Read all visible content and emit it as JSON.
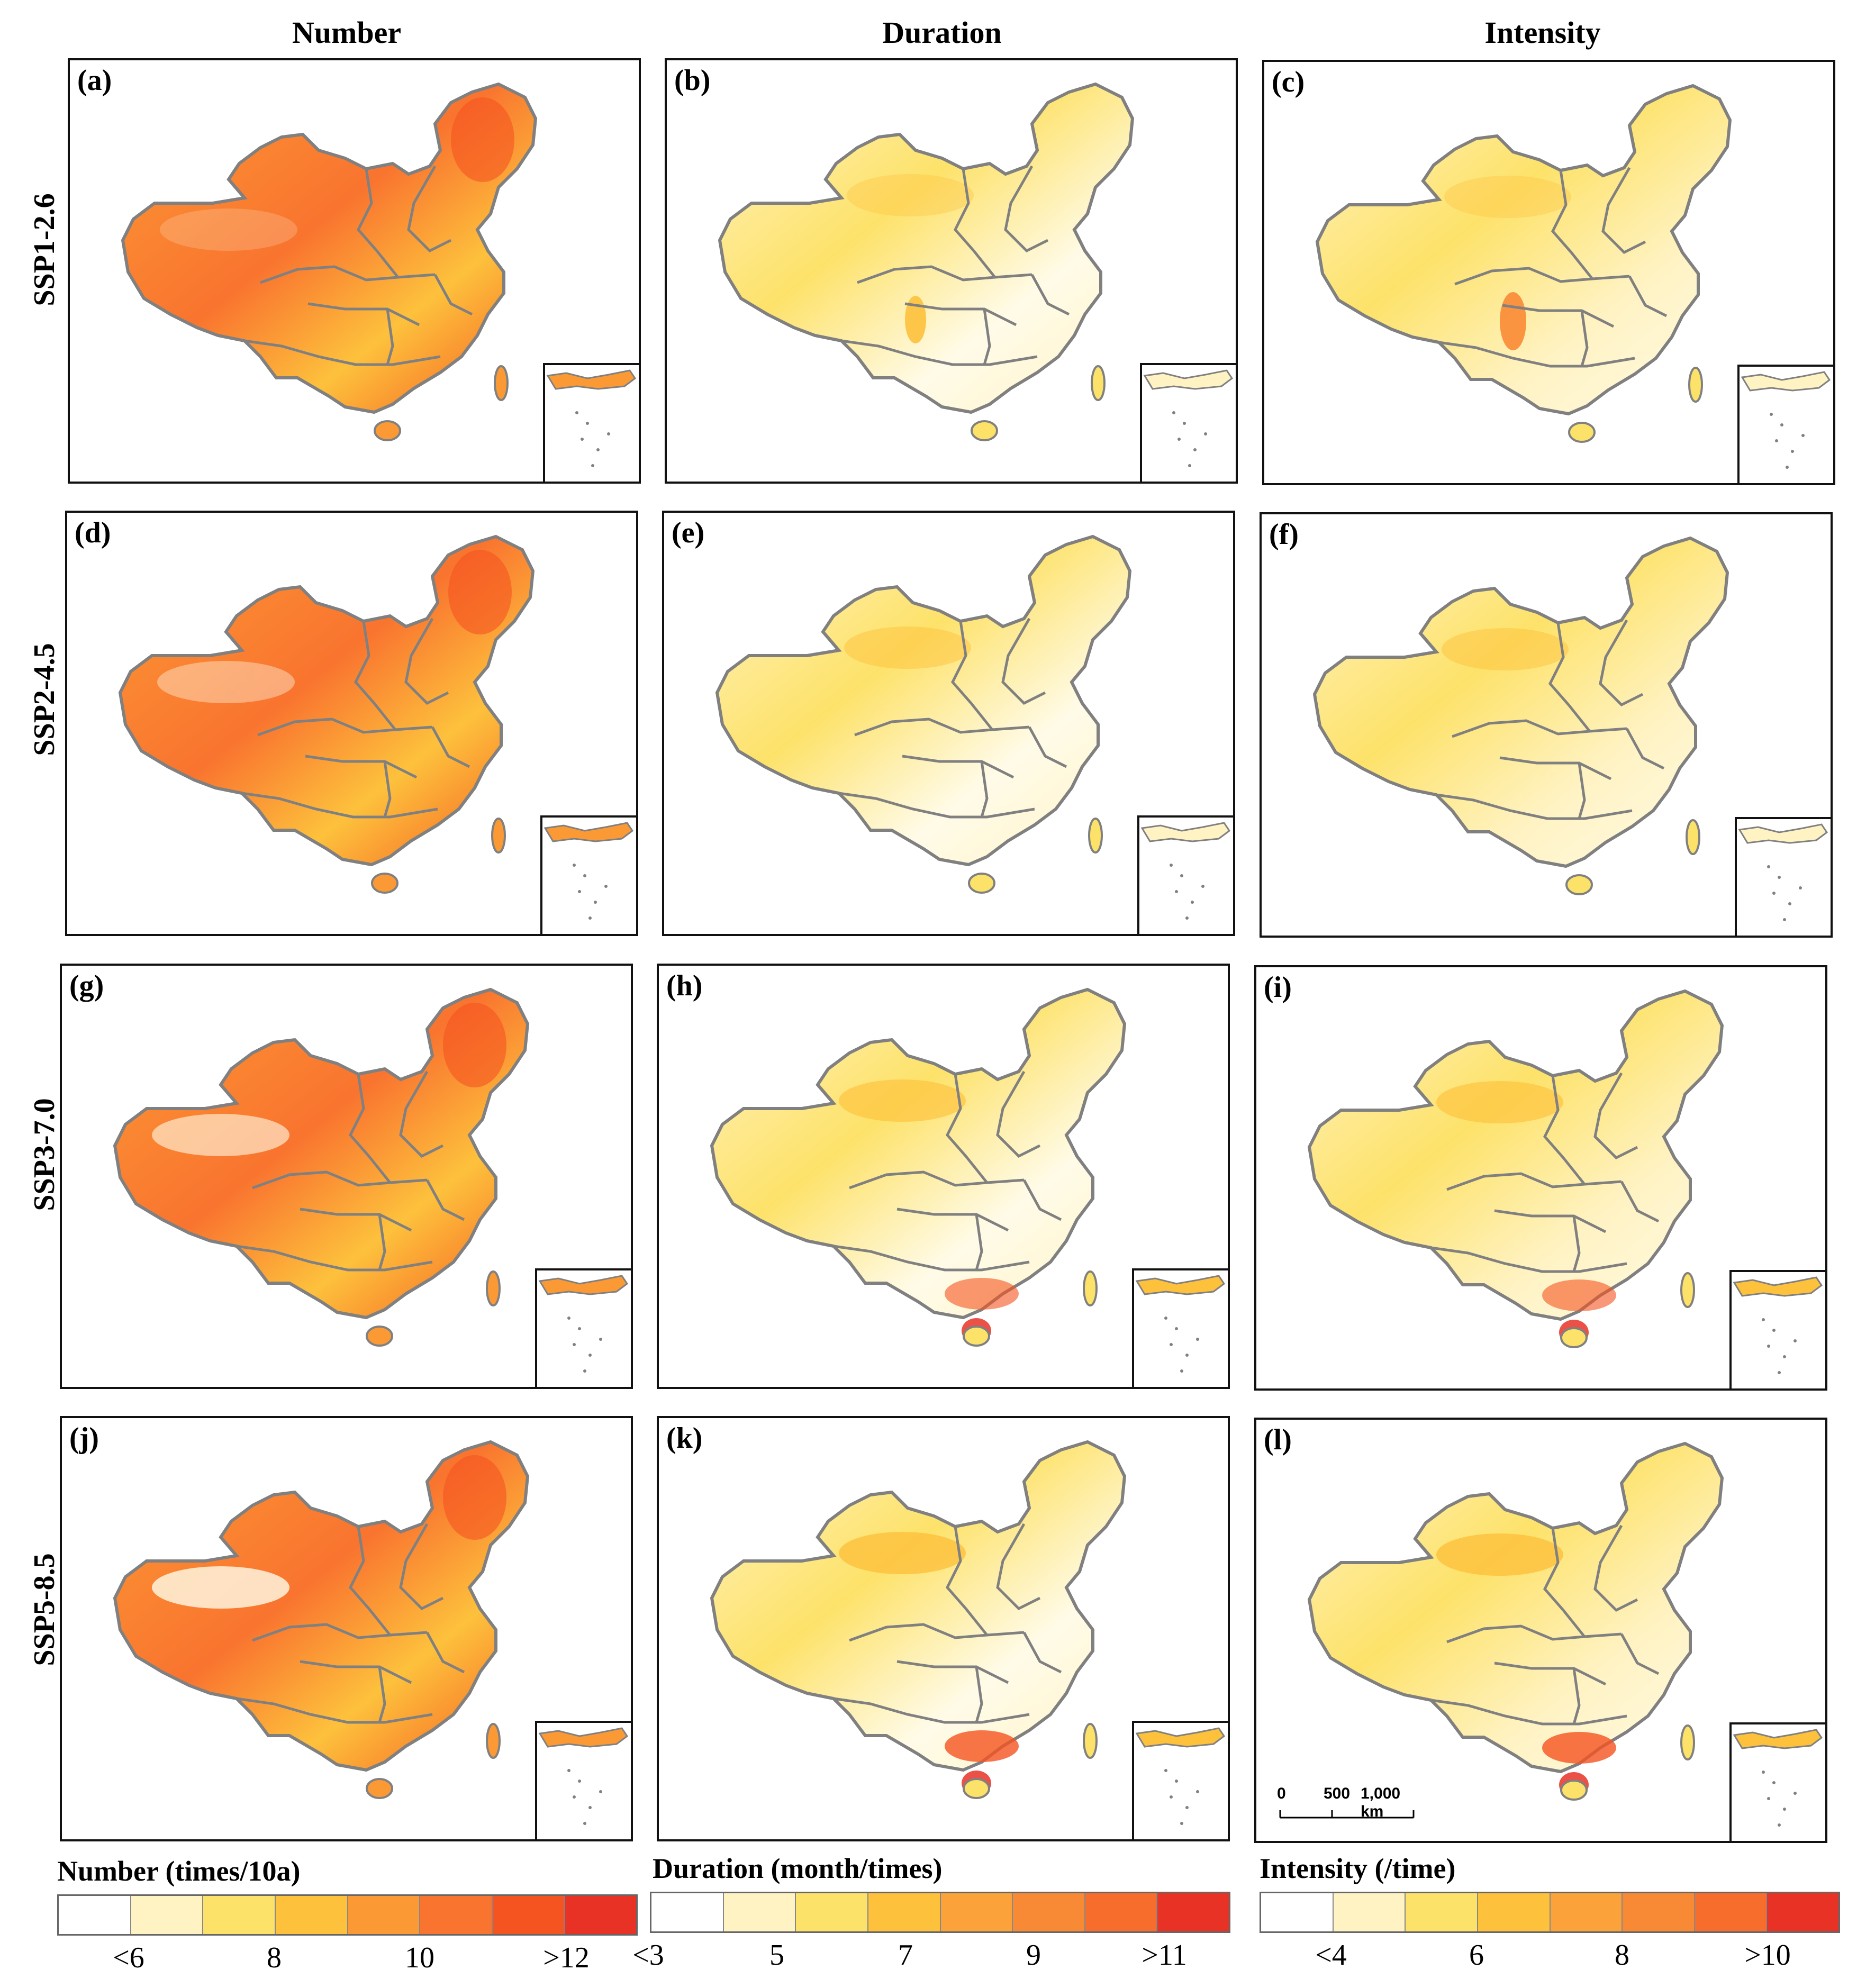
{
  "column_titles": [
    "Number",
    "Duration",
    "Intensity"
  ],
  "row_titles": [
    "SSP1-2.6",
    "SSP2-4.5",
    "SSP3-7.0",
    "SSP5-8.5"
  ],
  "panels": [
    {
      "label": "(a)",
      "variable": "Number",
      "scenario": "SSP1-2.6"
    },
    {
      "label": "(b)",
      "variable": "Duration",
      "scenario": "SSP1-2.6"
    },
    {
      "label": "(c)",
      "variable": "Intensity",
      "scenario": "SSP1-2.6"
    },
    {
      "label": "(d)",
      "variable": "Number",
      "scenario": "SSP2-4.5"
    },
    {
      "label": "(e)",
      "variable": "Duration",
      "scenario": "SSP2-4.5"
    },
    {
      "label": "(f)",
      "variable": "Intensity",
      "scenario": "SSP2-4.5"
    },
    {
      "label": "(g)",
      "variable": "Number",
      "scenario": "SSP3-7.0"
    },
    {
      "label": "(h)",
      "variable": "Duration",
      "scenario": "SSP3-7.0"
    },
    {
      "label": "(i)",
      "variable": "Intensity",
      "scenario": "SSP3-7.0"
    },
    {
      "label": "(j)",
      "variable": "Number",
      "scenario": "SSP5-8.5"
    },
    {
      "label": "(k)",
      "variable": "Duration",
      "scenario": "SSP5-8.5"
    },
    {
      "label": "(l)",
      "variable": "Intensity",
      "scenario": "SSP5-8.5"
    }
  ],
  "legends": [
    {
      "title": "Number (times/10a)",
      "colors": [
        "#ffffff",
        "#fff3c4",
        "#fde26a",
        "#fdc13c",
        "#fb9a35",
        "#f9742f",
        "#f5531f",
        "#e83226"
      ],
      "ticks": [
        "<6",
        "8",
        "10",
        ">12"
      ]
    },
    {
      "title": "Duration (month/times)",
      "colors": [
        "#ffffff",
        "#fff3c4",
        "#fde26a",
        "#fdc13c",
        "#fba23a",
        "#f98a35",
        "#f76d2c",
        "#e83226"
      ],
      "ticks": [
        "<3",
        "5",
        "7",
        "9",
        ">11"
      ]
    },
    {
      "title": "Intensity (/time)",
      "colors": [
        "#ffffff",
        "#fff3c4",
        "#fde26a",
        "#fdc13c",
        "#fba23a",
        "#f98a35",
        "#f76d2c",
        "#e83226"
      ],
      "ticks": [
        "<4",
        "6",
        "8",
        ">10"
      ]
    }
  ],
  "scale_bar": {
    "labels": [
      "0",
      "500",
      "1,000 km"
    ]
  },
  "colors": {
    "boundary": "#808080",
    "frame": "#111111"
  }
}
